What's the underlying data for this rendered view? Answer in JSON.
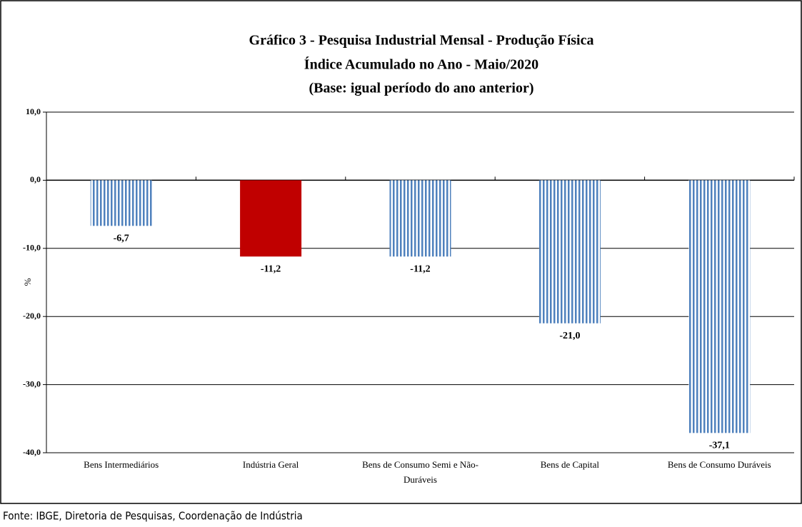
{
  "chart_data": {
    "type": "bar",
    "title": "Gráfico 3 - Pesquisa Industrial Mensal - Produção Física",
    "subtitle": [
      "Índice Acumulado no Ano - Maio/2020",
      "(Base: igual período do ano anterior)"
    ],
    "y_label": "%",
    "categories": [
      "Bens Intermediários",
      "Indústria Geral",
      "Bens de Consumo Semi e Não-Duráveis",
      "Bens de Capital",
      "Bens de Consumo Duráveis"
    ],
    "values": [
      -6.7,
      -11.2,
      -11.2,
      -21.0,
      -37.1
    ],
    "value_labels": [
      "-6,7",
      "-11,2",
      "-11,2",
      "-21,0",
      "-37,1"
    ],
    "colors": [
      "#4f81bd",
      "#c00000",
      "#4f81bd",
      "#4f81bd",
      "#4f81bd"
    ],
    "fill_styles": [
      "striped",
      "solid",
      "striped",
      "striped",
      "striped"
    ],
    "ylim": [
      -40,
      10
    ],
    "yticks": [
      {
        "value": 10,
        "label": "10,0"
      },
      {
        "value": 0,
        "label": "0,0"
      },
      {
        "value": -10,
        "label": "-10,0"
      },
      {
        "value": -20,
        "label": "-20,0"
      },
      {
        "value": -30,
        "label": "-30,0"
      },
      {
        "value": -40,
        "label": "-40,0"
      }
    ],
    "grid": true,
    "source": "Fonte: IBGE, Diretoria de Pesquisas, Coordenação de Indústria"
  }
}
